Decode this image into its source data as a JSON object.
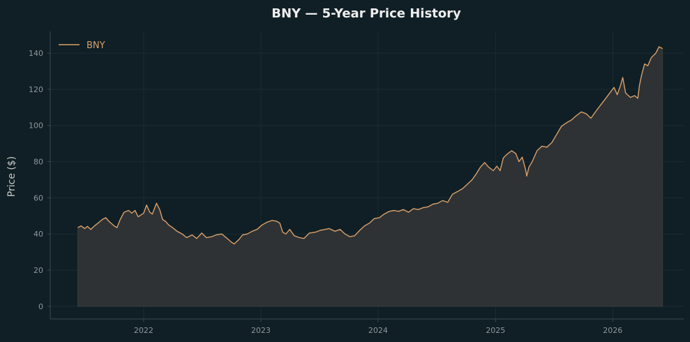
{
  "chart_data": {
    "type": "area",
    "title": "BNY — 5-Year Price History",
    "xlabel": "",
    "ylabel": "Price ($)",
    "x_ticks": [
      "2022",
      "2023",
      "2024",
      "2025",
      "2026"
    ],
    "y_ticks": [
      0,
      20,
      40,
      60,
      80,
      100,
      120,
      140
    ],
    "ylim": [
      -7,
      152
    ],
    "xlim": [
      "2021-03-16",
      "2026-08-10"
    ],
    "grid": true,
    "legend": {
      "position": "top-left",
      "entries": [
        "BNY"
      ]
    },
    "colors": {
      "line": "#d9a06b",
      "fill": "#2f3234",
      "background": "#0f1f25",
      "axis": "#3a4a50"
    },
    "series": [
      {
        "name": "BNY",
        "points": [
          [
            "2021-06-10",
            43.5
          ],
          [
            "2021-06-20",
            44.5
          ],
          [
            "2021-07-01",
            43.0
          ],
          [
            "2021-07-10",
            44.2
          ],
          [
            "2021-07-20",
            42.5
          ],
          [
            "2021-08-01",
            44.5
          ],
          [
            "2021-08-15",
            46.5
          ],
          [
            "2021-08-25",
            48.0
          ],
          [
            "2021-09-05",
            49.0
          ],
          [
            "2021-09-15",
            47.0
          ],
          [
            "2021-10-01",
            44.5
          ],
          [
            "2021-10-10",
            43.5
          ],
          [
            "2021-10-20",
            48.0
          ],
          [
            "2021-11-01",
            52.0
          ],
          [
            "2021-11-15",
            53.0
          ],
          [
            "2021-11-25",
            51.5
          ],
          [
            "2021-12-05",
            53.0
          ],
          [
            "2021-12-15",
            49.5
          ],
          [
            "2022-01-01",
            51.5
          ],
          [
            "2022-01-10",
            56.0
          ],
          [
            "2022-01-20",
            52.0
          ],
          [
            "2022-01-28",
            51.0
          ],
          [
            "2022-02-10",
            57.0
          ],
          [
            "2022-02-20",
            53.5
          ],
          [
            "2022-03-01",
            48.0
          ],
          [
            "2022-03-10",
            47.0
          ],
          [
            "2022-03-20",
            45.0
          ],
          [
            "2022-04-01",
            43.5
          ],
          [
            "2022-04-15",
            41.5
          ],
          [
            "2022-05-01",
            40.0
          ],
          [
            "2022-05-15",
            38.0
          ],
          [
            "2022-06-01",
            39.5
          ],
          [
            "2022-06-15",
            37.5
          ],
          [
            "2022-07-01",
            40.5
          ],
          [
            "2022-07-15",
            38.0
          ],
          [
            "2022-08-01",
            38.5
          ],
          [
            "2022-08-15",
            39.5
          ],
          [
            "2022-09-01",
            40.0
          ],
          [
            "2022-09-15",
            38.0
          ],
          [
            "2022-10-01",
            35.5
          ],
          [
            "2022-10-10",
            34.5
          ],
          [
            "2022-10-25",
            37.0
          ],
          [
            "2022-11-05",
            39.5
          ],
          [
            "2022-11-20",
            40.0
          ],
          [
            "2022-12-05",
            41.5
          ],
          [
            "2022-12-20",
            42.5
          ],
          [
            "2023-01-05",
            45.0
          ],
          [
            "2023-01-20",
            46.5
          ],
          [
            "2023-02-05",
            47.5
          ],
          [
            "2023-02-20",
            47.0
          ],
          [
            "2023-03-01",
            46.0
          ],
          [
            "2023-03-10",
            41.0
          ],
          [
            "2023-03-20",
            40.0
          ],
          [
            "2023-04-01",
            42.5
          ],
          [
            "2023-04-15",
            39.0
          ],
          [
            "2023-05-01",
            38.0
          ],
          [
            "2023-05-15",
            37.5
          ],
          [
            "2023-06-01",
            40.5
          ],
          [
            "2023-06-20",
            41.0
          ],
          [
            "2023-07-05",
            42.0
          ],
          [
            "2023-07-20",
            42.5
          ],
          [
            "2023-08-01",
            43.0
          ],
          [
            "2023-08-20",
            41.5
          ],
          [
            "2023-09-05",
            42.5
          ],
          [
            "2023-09-20",
            40.0
          ],
          [
            "2023-10-05",
            38.5
          ],
          [
            "2023-10-20",
            39.0
          ],
          [
            "2023-11-05",
            42.0
          ],
          [
            "2023-11-20",
            44.5
          ],
          [
            "2023-12-05",
            46.0
          ],
          [
            "2023-12-20",
            48.5
          ],
          [
            "2024-01-05",
            49.0
          ],
          [
            "2024-01-20",
            51.0
          ],
          [
            "2024-02-05",
            52.5
          ],
          [
            "2024-02-20",
            53.0
          ],
          [
            "2024-03-05",
            52.5
          ],
          [
            "2024-03-20",
            53.5
          ],
          [
            "2024-04-05",
            52.0
          ],
          [
            "2024-04-20",
            54.0
          ],
          [
            "2024-05-05",
            53.5
          ],
          [
            "2024-05-20",
            54.5
          ],
          [
            "2024-06-05",
            55.0
          ],
          [
            "2024-06-20",
            56.5
          ],
          [
            "2024-07-05",
            57.0
          ],
          [
            "2024-07-20",
            58.5
          ],
          [
            "2024-08-05",
            57.5
          ],
          [
            "2024-08-20",
            62.0
          ],
          [
            "2024-09-05",
            63.5
          ],
          [
            "2024-09-20",
            65.0
          ],
          [
            "2024-10-05",
            67.5
          ],
          [
            "2024-10-20",
            70.0
          ],
          [
            "2024-11-01",
            73.0
          ],
          [
            "2024-11-15",
            77.0
          ],
          [
            "2024-11-28",
            79.5
          ],
          [
            "2024-12-10",
            77.0
          ],
          [
            "2024-12-25",
            75.0
          ],
          [
            "2025-01-05",
            77.5
          ],
          [
            "2025-01-15",
            75.0
          ],
          [
            "2025-01-25",
            82.0
          ],
          [
            "2025-02-05",
            84.0
          ],
          [
            "2025-02-20",
            86.0
          ],
          [
            "2025-03-05",
            84.5
          ],
          [
            "2025-03-15",
            80.0
          ],
          [
            "2025-03-25",
            82.5
          ],
          [
            "2025-04-04",
            76.0
          ],
          [
            "2025-04-08",
            72.0
          ],
          [
            "2025-04-15",
            77.0
          ],
          [
            "2025-04-25",
            80.0
          ],
          [
            "2025-05-10",
            86.0
          ],
          [
            "2025-05-25",
            88.5
          ],
          [
            "2025-06-10",
            88.0
          ],
          [
            "2025-06-25",
            90.5
          ],
          [
            "2025-07-10",
            95.0
          ],
          [
            "2025-07-25",
            99.5
          ],
          [
            "2025-08-10",
            101.5
          ],
          [
            "2025-08-25",
            103.0
          ],
          [
            "2025-09-10",
            105.5
          ],
          [
            "2025-09-25",
            107.5
          ],
          [
            "2025-10-10",
            106.5
          ],
          [
            "2025-10-25",
            104.0
          ],
          [
            "2025-11-10",
            108.0
          ],
          [
            "2025-11-25",
            111.5
          ],
          [
            "2025-12-10",
            115.0
          ],
          [
            "2025-12-25",
            118.5
          ],
          [
            "2026-01-05",
            121.0
          ],
          [
            "2026-01-15",
            117.0
          ],
          [
            "2026-01-25",
            122.0
          ],
          [
            "2026-02-01",
            126.5
          ],
          [
            "2026-02-10",
            118.0
          ],
          [
            "2026-02-25",
            115.5
          ],
          [
            "2026-03-10",
            116.5
          ],
          [
            "2026-03-20",
            115.0
          ],
          [
            "2026-03-25",
            122.0
          ],
          [
            "2026-04-01",
            128.0
          ],
          [
            "2026-04-10",
            134.0
          ],
          [
            "2026-04-20",
            133.0
          ],
          [
            "2026-05-01",
            137.5
          ],
          [
            "2026-05-15",
            140.0
          ],
          [
            "2026-05-25",
            143.5
          ],
          [
            "2026-06-05",
            142.5
          ]
        ]
      }
    ]
  }
}
